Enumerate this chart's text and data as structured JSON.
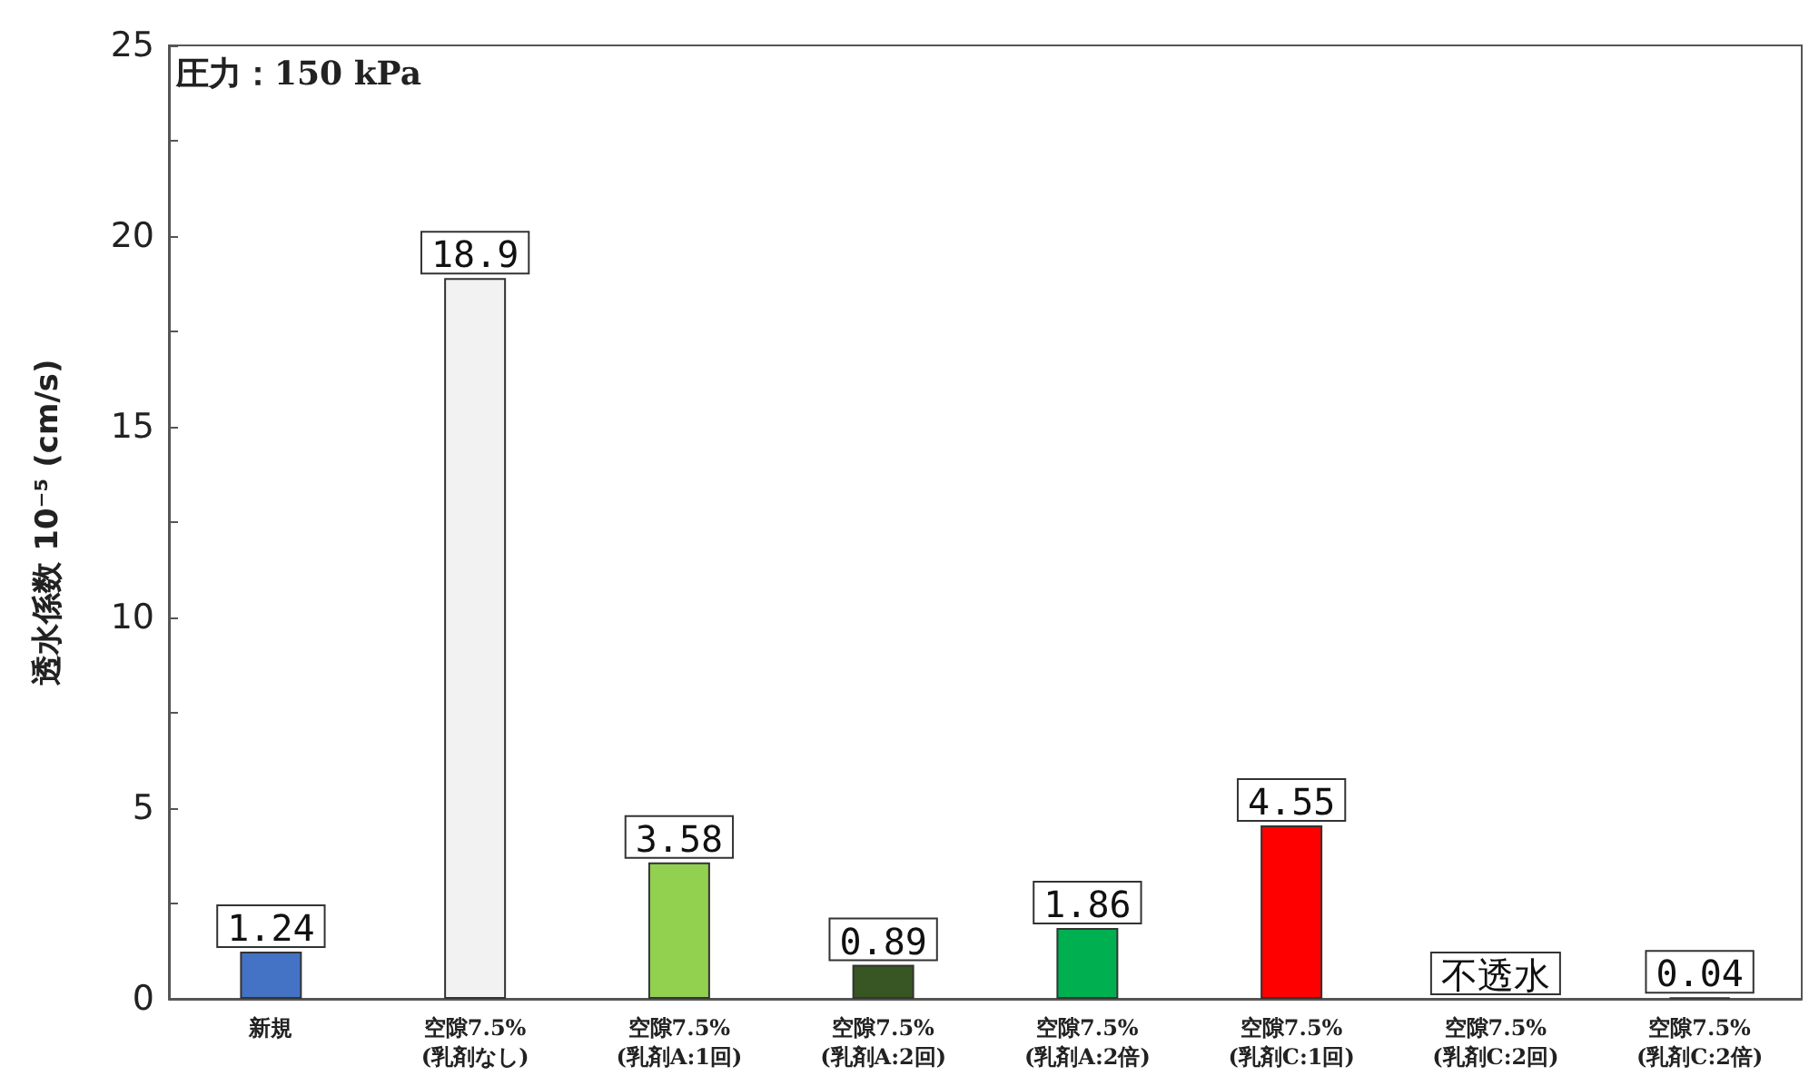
{
  "chart_data": {
    "type": "bar",
    "ylabel": "透水係数 10⁻⁵ (cm/s)",
    "annotations": [
      "圧力：150 kPa"
    ],
    "categories": [
      "新規",
      "空隙7.5%\n(乳剤なし)",
      "空隙7.5%\n(乳剤A:1回)",
      "空隙7.5%\n(乳剤A:2回)",
      "空隙7.5%\n(乳剤A:2倍)",
      "空隙7.5%\n(乳剤C:1回)",
      "空隙7.5%\n(乳剤C:2回)",
      "空隙7.5%\n(乳剤C:2倍)"
    ],
    "values": [
      1.24,
      18.9,
      3.58,
      0.89,
      1.86,
      4.55,
      0,
      0.04
    ],
    "value_labels": [
      "1.24",
      "18.9",
      "3.58",
      "0.89",
      "1.86",
      "4.55",
      "不透水",
      "0.04"
    ],
    "colors": [
      "#4472c4",
      "#f2f2f2",
      "#92d050",
      "#375623",
      "#00b050",
      "#ff0000",
      "#ffffff",
      "#333333"
    ],
    "ylim": [
      0,
      25
    ],
    "yticks": [
      0,
      {
        "value": 2.5,
        "label": null
      },
      5,
      {
        "value": 7.5,
        "label": null
      },
      10,
      {
        "value": 12.5,
        "label": null
      },
      15,
      {
        "value": 17.5,
        "label": null
      },
      20,
      {
        "value": 22.5,
        "label": null
      },
      25
    ],
    "grid": false
  }
}
